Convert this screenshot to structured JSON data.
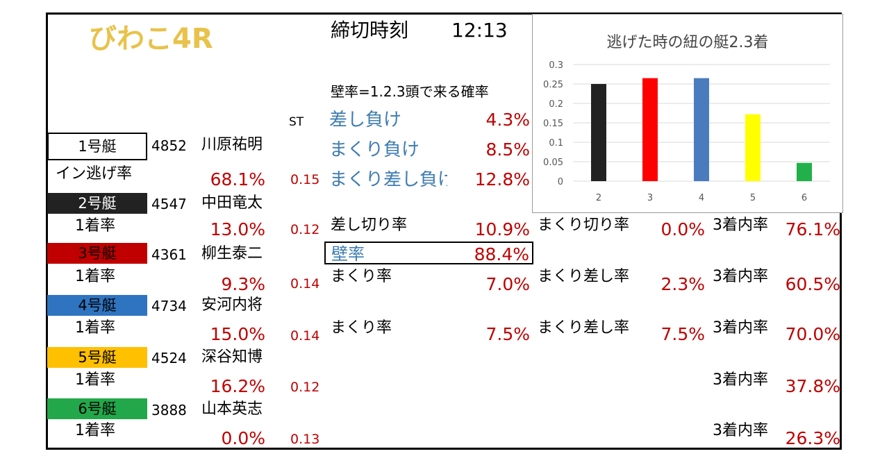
{
  "header": {
    "race": "びわこ4R",
    "deadline_label": "締切時刻",
    "deadline_time": "12:13"
  },
  "wall_info": {
    "heading": "壁率=1.2.3頭で来る確率",
    "st_label": "ST",
    "sashi_make_label": "差し負け",
    "sashi_make_value": "4.3%",
    "makuri_make_label": "まくり負け",
    "makuri_make_value": "8.5%",
    "makuri_sashi_make_label": "まくり差し負け",
    "makuri_sashi_make_value": "12.8%"
  },
  "boats": [
    {
      "boat": "1号艇",
      "id": "4852",
      "name": "川原祐明",
      "rate_label": "イン逃げ率",
      "rate": "68.1%",
      "st": "0.15",
      "color": "#ffffff",
      "text_color": "#000000"
    },
    {
      "boat": "2号艇",
      "id": "4547",
      "name": "中田竜太",
      "rate_label": "1着率",
      "rate": "13.0%",
      "st": "0.12",
      "color": "#222222",
      "text_color": "#ffffff"
    },
    {
      "boat": "3号艇",
      "id": "4361",
      "name": "柳生泰二",
      "rate_label": "1着率",
      "rate": "9.3%",
      "st": "0.14",
      "color": "#c00000",
      "text_color": "#000000"
    },
    {
      "boat": "4号艇",
      "id": "4734",
      "name": "安河内将",
      "rate_label": "1着率",
      "rate": "15.0%",
      "st": "0.14",
      "color": "#2f74c0",
      "text_color": "#000000"
    },
    {
      "boat": "5号艇",
      "id": "4524",
      "name": "深谷知博",
      "rate_label": "1着率",
      "rate": "16.2%",
      "st": "0.12",
      "color": "#ffc000",
      "text_color": "#000000"
    },
    {
      "boat": "6号艇",
      "id": "3888",
      "name": "山本英志",
      "rate_label": "1着率",
      "rate": "0.0%",
      "st": "0.13",
      "color": "#22a84a",
      "text_color": "#000000"
    }
  ],
  "stats": {
    "row2": {
      "l1": "差し切り率",
      "v1": "10.9%",
      "l2": "まくり切り率",
      "v2": "0.0%",
      "l3": "3着内率",
      "v3": "76.1%"
    },
    "wall": {
      "label": "壁率",
      "value": "88.4%"
    },
    "row3": {
      "l1": "まくり率",
      "v1": "7.0%",
      "l2": "まくり差し率",
      "v2": "2.3%",
      "l3": "3着内率",
      "v3": "60.5%"
    },
    "row4": {
      "l1": "まくり率",
      "v1": "7.5%",
      "l2": "まくり差し率",
      "v2": "7.5%",
      "l3": "3着内率",
      "v3": "70.0%"
    },
    "row5": {
      "l3": "3着内率",
      "v3": "37.8%"
    },
    "row6": {
      "l3": "3着内率",
      "v3": "26.3%"
    }
  },
  "chart_data": {
    "type": "bar",
    "title": "逃げた時の紐の艇2.3着",
    "categories": [
      "2",
      "3",
      "4",
      "5",
      "6"
    ],
    "values": [
      0.25,
      0.265,
      0.265,
      0.172,
      0.047
    ],
    "colors": [
      "#222222",
      "#ff0000",
      "#4a7bbf",
      "#ffff00",
      "#22b04a"
    ],
    "ylim": [
      0,
      0.3
    ],
    "yticks": [
      "0",
      "0.05",
      "0.1",
      "0.15",
      "0.2",
      "0.25",
      "0.3"
    ],
    "grid": true,
    "legend": "none"
  }
}
